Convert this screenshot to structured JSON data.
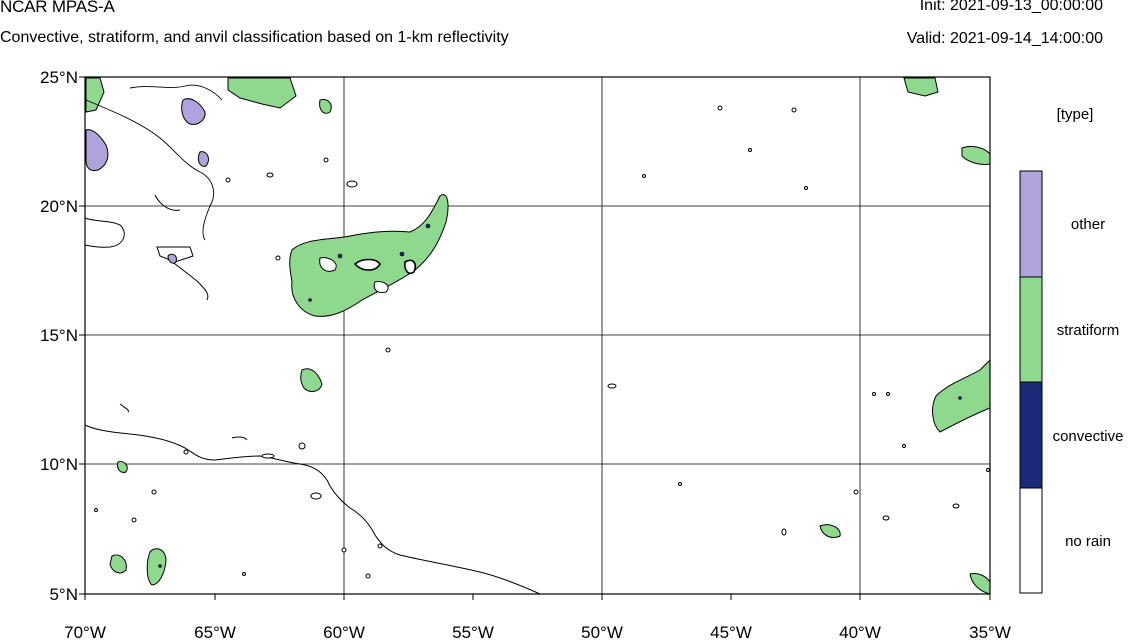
{
  "header": {
    "model_name": "NCAR MPAS-A",
    "description": "Convective, stratiform, and anvil classification based on 1-km reflectivity",
    "init_time": "Init: 2021-09-13_00:00:00",
    "valid_time": "Valid: 2021-09-14_14:00:00"
  },
  "map": {
    "lon_ticks": [
      "70°W",
      "65°W",
      "60°W",
      "55°W",
      "50°W",
      "45°W",
      "40°W",
      "35°W"
    ],
    "lat_ticks": [
      "25°N",
      "20°N",
      "15°N",
      "10°N",
      "5°N"
    ],
    "lon_range": [
      -70,
      -35
    ],
    "lat_range": [
      5,
      25
    ],
    "gridlines": true,
    "colors": {
      "other": "#b0a3dc",
      "stratiform": "#8fd98f",
      "convective": "#1a2a78",
      "no_rain": "#ffffff",
      "coastline": "#000000",
      "grid": "#000000"
    }
  },
  "legend": {
    "title": "[type]",
    "entries": [
      {
        "label": "other",
        "color": "#b0a3dc"
      },
      {
        "label": "stratiform",
        "color": "#8fd98f"
      },
      {
        "label": "convective",
        "color": "#1a2a78"
      },
      {
        "label": "no rain",
        "color": "#ffffff"
      }
    ]
  }
}
